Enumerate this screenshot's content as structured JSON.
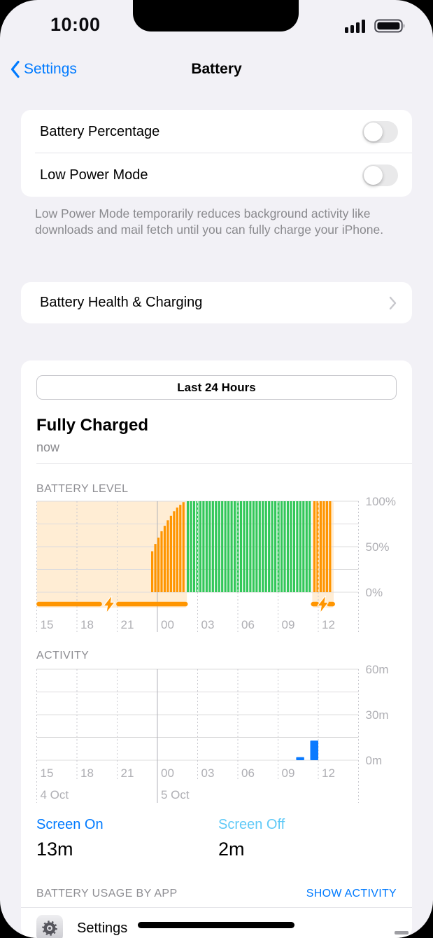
{
  "status_bar": {
    "time": "10:00",
    "signal_bars": 4,
    "battery_full": true
  },
  "nav": {
    "back_label": "Settings",
    "title": "Battery"
  },
  "toggles": {
    "battery_percentage_label": "Battery Percentage",
    "battery_percentage_on": false,
    "low_power_label": "Low Power Mode",
    "low_power_on": false
  },
  "footnote": {
    "text": "Low Power Mode temporarily reduces background activity like downloads and mail fetch until you can fully charge your iPhone."
  },
  "battery_health": {
    "label": "Battery Health & Charging"
  },
  "usage_card": {
    "range_button": "Last 24 Hours",
    "status_title": "Fully Charged",
    "status_subtitle": "now",
    "screen_on_label": "Screen On",
    "screen_on_value": "13m",
    "screen_off_label": "Screen Off",
    "screen_off_value": "2m",
    "usage_header": "BATTERY USAGE BY APP",
    "show_activity": "SHOW ACTIVITY",
    "first_app": {
      "name": "Settings"
    }
  },
  "chart_data": [
    {
      "id": "battery_level",
      "type": "bar",
      "title": "BATTERY LEVEL",
      "ylim": [
        0,
        100
      ],
      "y_ticks": [
        {
          "v": 100,
          "label": "100%"
        },
        {
          "v": 50,
          "label": "50%"
        },
        {
          "v": 0,
          "label": "0%"
        }
      ],
      "grid_y_divisions": 4,
      "x_span_hours": 24,
      "x_ticks": [
        {
          "h": 0,
          "label": "15"
        },
        {
          "h": 3,
          "label": "18"
        },
        {
          "h": 6,
          "label": "21"
        },
        {
          "h": 9,
          "label": "00",
          "solid": true
        },
        {
          "h": 12,
          "label": "03"
        },
        {
          "h": 15,
          "label": "06"
        },
        {
          "h": 18,
          "label": "09"
        },
        {
          "h": 21,
          "label": "12"
        }
      ],
      "charging_regions": [
        {
          "from_h": 0,
          "to_h": 11.2
        },
        {
          "from_h": 20.55,
          "to_h": 22.15
        }
      ],
      "plugged_segments": [
        {
          "from_h": 0.15,
          "to_h": 4.7
        },
        {
          "from_h": 6.1,
          "to_h": 11.1
        },
        {
          "from_h": 20.62,
          "to_h": 20.9
        },
        {
          "from_h": 21.8,
          "to_h": 22.08
        }
      ],
      "bolts_h": [
        5.4,
        21.35
      ],
      "bar_pitch_h": 0.233,
      "bar_segments": [
        {
          "start_h": 8.53,
          "color_key": "orange",
          "levels": [
            45,
            53,
            60,
            67,
            73,
            79,
            84,
            89,
            93,
            96,
            99
          ]
        },
        {
          "start_h": 11.19,
          "color_key": "green",
          "count": 40,
          "level": 100
        },
        {
          "start_h": 20.63,
          "color_key": "orange",
          "count": 6,
          "level": 100
        }
      ],
      "colors": {
        "orange": "#FF9500",
        "green": "#32C759",
        "shade": "rgba(255,149,0,0.17)"
      }
    },
    {
      "id": "activity",
      "type": "bar",
      "title": "ACTIVITY",
      "ylim": [
        0,
        60
      ],
      "y_ticks": [
        {
          "v": 60,
          "label": "60m"
        },
        {
          "v": 30,
          "label": "30m"
        },
        {
          "v": 0,
          "label": "0m"
        }
      ],
      "grid_y_divisions": 4,
      "x_span_hours": 24,
      "x_ticks": [
        {
          "h": 0,
          "label": "15"
        },
        {
          "h": 3,
          "label": "18"
        },
        {
          "h": 6,
          "label": "21"
        },
        {
          "h": 9,
          "label": "00",
          "solid": true
        },
        {
          "h": 12,
          "label": "03"
        },
        {
          "h": 15,
          "label": "06"
        },
        {
          "h": 18,
          "label": "09"
        },
        {
          "h": 21,
          "label": "12"
        }
      ],
      "date_labels": [
        {
          "h": 0,
          "label": "4 Oct"
        },
        {
          "h": 9,
          "label": "5 Oct"
        }
      ],
      "bars": [
        {
          "h": 19.35,
          "width_h": 0.6,
          "value": 2
        },
        {
          "h": 20.4,
          "width_h": 0.6,
          "value": 13
        }
      ],
      "bar_color": "#0A7AFF"
    }
  ]
}
